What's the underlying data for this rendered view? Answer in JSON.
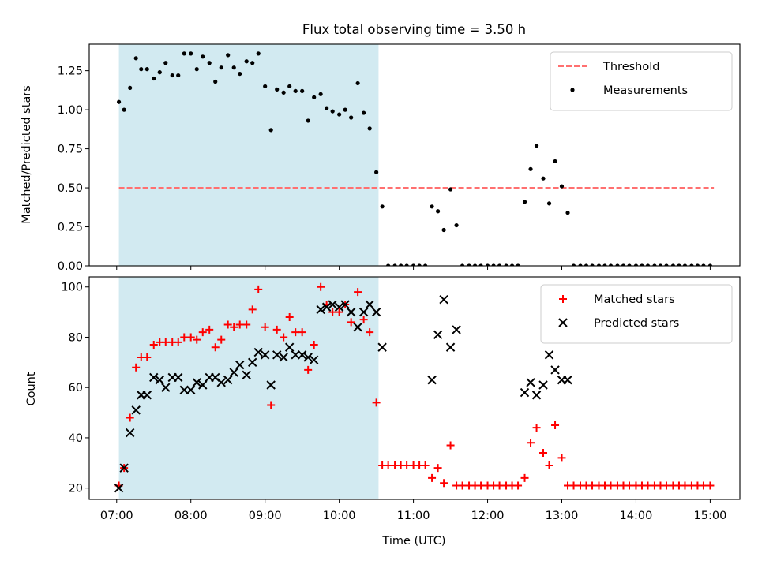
{
  "chart_data": [
    {
      "type": "scatter",
      "title": "Flux total observing time = 3.50 h",
      "xlabel": "",
      "ylabel": "Matched/Predicted stars",
      "ylim": [
        0,
        1.42
      ],
      "yticks": [
        "0.00",
        "0.25",
        "0.50",
        "0.75",
        "1.00",
        "1.25"
      ],
      "ytick_values": [
        0,
        0.25,
        0.5,
        0.75,
        1.0,
        1.25
      ],
      "x_unit": "hours UTC",
      "xlim": [
        6.63,
        15.4
      ],
      "shaded_interval": [
        7.03,
        10.53
      ],
      "shaded_color": "#add8e6",
      "legend_position": "upper right",
      "threshold": {
        "name": "Threshold",
        "value": 0.5,
        "x_range": [
          7.03,
          15.05
        ],
        "color": "#ff7070",
        "style": "dashed"
      },
      "series": [
        {
          "name": "Measurements",
          "color": "#000000",
          "marker": "dot",
          "x": [
            7.03,
            7.1,
            7.18,
            7.26,
            7.33,
            7.41,
            7.5,
            7.58,
            7.66,
            7.75,
            7.83,
            7.91,
            8.0,
            8.08,
            8.16,
            8.25,
            8.33,
            8.41,
            8.5,
            8.58,
            8.66,
            8.75,
            8.83,
            8.91,
            9.0,
            9.08,
            9.16,
            9.25,
            9.33,
            9.41,
            9.5,
            9.58,
            9.66,
            9.75,
            9.83,
            9.91,
            10.0,
            10.08,
            10.16,
            10.25,
            10.33,
            10.41,
            10.5,
            10.58,
            10.66,
            10.75,
            10.83,
            10.91,
            11.0,
            11.08,
            11.16,
            11.25,
            11.33,
            11.41,
            11.5,
            11.58,
            11.66,
            11.75,
            11.83,
            11.91,
            12.0,
            12.08,
            12.16,
            12.25,
            12.33,
            12.41,
            12.5,
            12.58,
            12.66,
            12.75,
            12.83,
            12.91,
            13.0,
            13.08,
            13.16,
            13.25,
            13.33,
            13.41,
            13.5,
            13.58,
            13.66,
            13.75,
            13.83,
            13.91,
            14.0,
            14.08,
            14.16,
            14.25,
            14.33,
            14.41,
            14.5,
            14.58,
            14.66,
            14.75,
            14.83,
            14.91,
            15.0
          ],
          "y": [
            1.05,
            1.0,
            1.14,
            1.33,
            1.26,
            1.26,
            1.2,
            1.24,
            1.3,
            1.22,
            1.22,
            1.36,
            1.36,
            1.26,
            1.34,
            1.3,
            1.18,
            1.27,
            1.35,
            1.27,
            1.23,
            1.31,
            1.3,
            1.36,
            1.15,
            0.87,
            1.13,
            1.11,
            1.15,
            1.12,
            1.12,
            0.93,
            1.08,
            1.1,
            1.01,
            0.99,
            0.97,
            1.0,
            0.95,
            1.17,
            0.98,
            0.88,
            0.6,
            0.38,
            0,
            0,
            0,
            0,
            0,
            0,
            0,
            0.38,
            0.35,
            0.23,
            0.49,
            0.26,
            0,
            0,
            0,
            0,
            0,
            0,
            0,
            0,
            0,
            0,
            0.41,
            0.62,
            0.77,
            0.56,
            0.4,
            0.67,
            0.51,
            0.34,
            0,
            0,
            0,
            0,
            0,
            0,
            0,
            0,
            0,
            0,
            0,
            0,
            0,
            0,
            0,
            0,
            0,
            0,
            0,
            0,
            0,
            0,
            0
          ]
        }
      ]
    },
    {
      "type": "scatter",
      "title": "",
      "xlabel": "Time (UTC)",
      "ylabel": "Count",
      "ylim": [
        15.5,
        104
      ],
      "yticks": [
        "20",
        "40",
        "60",
        "80",
        "100"
      ],
      "ytick_values": [
        20,
        40,
        60,
        80,
        100
      ],
      "xticks": [
        "07:00",
        "08:00",
        "09:00",
        "10:00",
        "11:00",
        "12:00",
        "13:00",
        "14:00",
        "15:00"
      ],
      "xtick_values": [
        7,
        8,
        9,
        10,
        11,
        12,
        13,
        14,
        15
      ],
      "x_unit": "hours UTC",
      "xlim": [
        6.63,
        15.4
      ],
      "shaded_interval": [
        7.03,
        10.53
      ],
      "shaded_color": "#add8e6",
      "legend_position": "upper right",
      "series": [
        {
          "name": "Matched stars",
          "color": "#ff0000",
          "marker": "plus",
          "x": [
            7.03,
            7.1,
            7.18,
            7.26,
            7.33,
            7.41,
            7.5,
            7.58,
            7.66,
            7.75,
            7.83,
            7.91,
            8.0,
            8.08,
            8.16,
            8.25,
            8.33,
            8.41,
            8.5,
            8.58,
            8.66,
            8.75,
            8.83,
            8.91,
            9.0,
            9.08,
            9.16,
            9.25,
            9.33,
            9.41,
            9.5,
            9.58,
            9.66,
            9.75,
            9.83,
            9.91,
            10.0,
            10.08,
            10.16,
            10.25,
            10.33,
            10.41,
            10.5,
            10.58,
            10.66,
            10.75,
            10.83,
            10.91,
            11.0,
            11.08,
            11.16,
            11.25,
            11.33,
            11.41,
            11.5,
            11.58,
            11.66,
            11.75,
            11.83,
            11.91,
            12.0,
            12.08,
            12.16,
            12.25,
            12.33,
            12.41,
            12.5,
            12.58,
            12.66,
            12.75,
            12.83,
            12.91,
            13.0,
            13.08,
            13.16,
            13.25,
            13.33,
            13.41,
            13.5,
            13.58,
            13.66,
            13.75,
            13.83,
            13.91,
            14.0,
            14.08,
            14.16,
            14.25,
            14.33,
            14.41,
            14.5,
            14.58,
            14.66,
            14.75,
            14.83,
            14.91,
            15.0
          ],
          "y": [
            21,
            28,
            48,
            68,
            72,
            72,
            77,
            78,
            78,
            78,
            78,
            80,
            80,
            79,
            82,
            83,
            76,
            79,
            85,
            84,
            85,
            85,
            91,
            99,
            84,
            53,
            83,
            80,
            88,
            82,
            82,
            67,
            77,
            100,
            93,
            90,
            90,
            93,
            86,
            98,
            87,
            82,
            54,
            29,
            29,
            29,
            29,
            29,
            29,
            29,
            29,
            24,
            28,
            22,
            37,
            21,
            21,
            21,
            21,
            21,
            21,
            21,
            21,
            21,
            21,
            21,
            24,
            38,
            44,
            34,
            29,
            45,
            32,
            21,
            21,
            21,
            21,
            21,
            21,
            21,
            21,
            21,
            21,
            21,
            21,
            21,
            21,
            21,
            21,
            21,
            21,
            21,
            21,
            21,
            21,
            21,
            21
          ]
        },
        {
          "name": "Predicted stars",
          "color": "#000000",
          "marker": "x",
          "x": [
            7.03,
            7.1,
            7.18,
            7.26,
            7.33,
            7.41,
            7.5,
            7.58,
            7.66,
            7.75,
            7.83,
            7.91,
            8.0,
            8.08,
            8.16,
            8.25,
            8.33,
            8.41,
            8.5,
            8.58,
            8.66,
            8.75,
            8.83,
            8.91,
            9.0,
            9.08,
            9.16,
            9.25,
            9.33,
            9.41,
            9.5,
            9.58,
            9.66,
            9.75,
            9.83,
            9.91,
            10.0,
            10.08,
            10.16,
            10.25,
            10.33,
            10.41,
            10.5,
            10.58,
            11.25,
            11.33,
            11.41,
            11.5,
            11.58,
            12.5,
            12.58,
            12.66,
            12.75,
            12.83,
            12.91,
            13.0,
            13.08
          ],
          "y": [
            20,
            28,
            42,
            51,
            57,
            57,
            64,
            63,
            60,
            64,
            64,
            59,
            59,
            62,
            61,
            64,
            64,
            62,
            63,
            66,
            69,
            65,
            70,
            74,
            73,
            61,
            73,
            72,
            76,
            73,
            73,
            72,
            71,
            91,
            92,
            93,
            92,
            93,
            90,
            84,
            90,
            93,
            90,
            76,
            63,
            81,
            95,
            76,
            83,
            58,
            62,
            57,
            61,
            73,
            67,
            63,
            63
          ]
        }
      ]
    }
  ]
}
